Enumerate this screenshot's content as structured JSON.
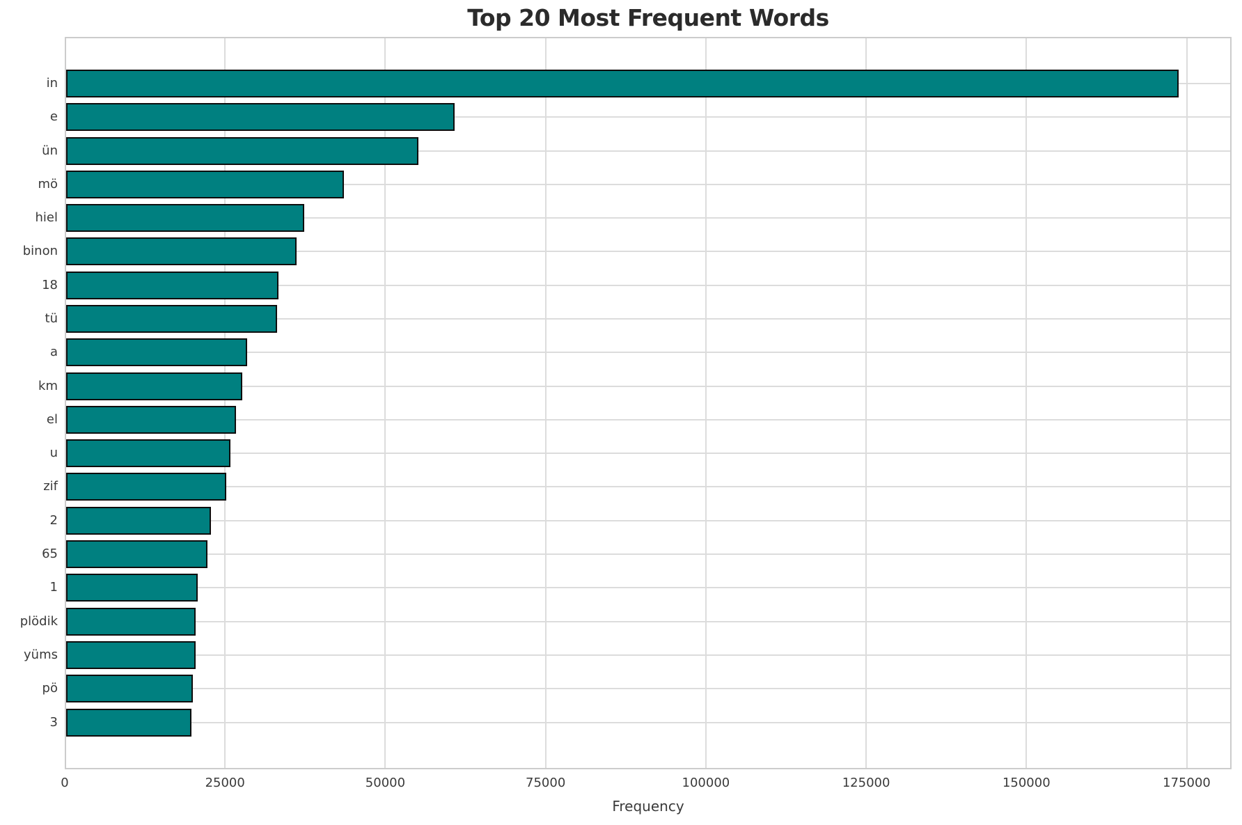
{
  "chart_data": {
    "type": "bar",
    "orientation": "horizontal",
    "title": "Top 20 Most Frequent Words",
    "xlabel": "Frequency",
    "ylabel": "",
    "categories": [
      "in",
      "e",
      "ün",
      "mö",
      "hiel",
      "binon",
      "18",
      "tü",
      "a",
      "km",
      "el",
      "u",
      "zif",
      "2",
      "65",
      "1",
      "plödik",
      "yüms",
      "pö",
      "3"
    ],
    "values": [
      173500,
      60600,
      55000,
      43300,
      37100,
      35900,
      33100,
      32900,
      28200,
      27500,
      26500,
      25600,
      25000,
      22600,
      22000,
      20500,
      20250,
      20150,
      19800,
      19550
    ],
    "xlim": [
      0,
      182000
    ],
    "xticks": [
      0,
      25000,
      50000,
      75000,
      100000,
      125000,
      150000,
      175000
    ],
    "grid": true,
    "legend_position": "none",
    "bar_color": "#008080",
    "bar_edge_color": "#0d0d0d",
    "grid_color": "#dcdcdc"
  }
}
